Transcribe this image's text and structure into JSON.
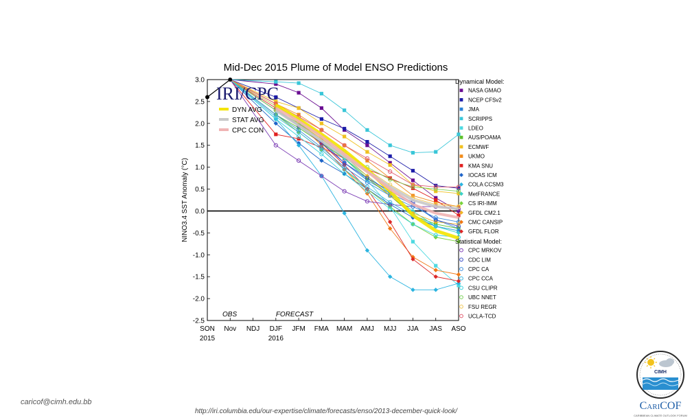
{
  "chart_data": {
    "type": "line",
    "title": "Mid-Dec 2015 Plume of Model ENSO Predictions",
    "watermark": "IRI/CPC",
    "ylabel": "NINO3.4 SST Anomaly (°C)",
    "xlabel": "",
    "ylim": [
      -2.5,
      3.0
    ],
    "yticks": [
      3.0,
      2.5,
      2.0,
      1.5,
      1.0,
      0.5,
      0.0,
      -0.5,
      -1.0,
      -1.5,
      -2.0,
      -2.5
    ],
    "yticklabels": [
      "3.0",
      "2.5",
      "2.0",
      "1.5",
      "1.0",
      "0.5",
      "0.0",
      "-0.5",
      "-1.0",
      "-1.5",
      "-2.0",
      "-2.5"
    ],
    "categories": [
      "SON",
      "Nov",
      "NDJ",
      "DJF",
      "JFM",
      "FMA",
      "MAM",
      "AMJ",
      "MJJ",
      "JJA",
      "JAS",
      "ASO"
    ],
    "year_labels": [
      {
        "index": 0,
        "text": "2015"
      },
      {
        "index": 3,
        "text": "2016"
      }
    ],
    "region_labels": {
      "obs": "OBS",
      "forecast": "FORECAST"
    },
    "observed": {
      "name": "OBS",
      "color": "#000000",
      "values": [
        2.6,
        3.0
      ]
    },
    "summary_legend": [
      {
        "name": "DYN AVG",
        "color": "#f4e400"
      },
      {
        "name": "STAT AVG",
        "color": "#c8c8c8"
      },
      {
        "name": "CPC CON",
        "color": "#f0b4b4"
      }
    ],
    "averages": [
      {
        "name": "DYN AVG",
        "color": "#f4e400",
        "values": [
          2.42,
          2.1,
          1.75,
          1.38,
          0.95,
          0.45,
          -0.1,
          -0.45,
          -0.62
        ]
      },
      {
        "name": "STAT AVG",
        "color": "#c8c8c8",
        "values": [
          2.3,
          1.95,
          1.6,
          1.25,
          0.9,
          0.55,
          0.25,
          0.1,
          0.05
        ]
      },
      {
        "name": "CPC CON",
        "color": "#f0b4b4",
        "values": [
          2.35,
          2.05,
          1.7,
          1.3,
          0.9,
          0.5,
          0.15,
          -0.05,
          -0.15
        ]
      }
    ],
    "dynamical_header": "Dynamical Model:",
    "statistical_header": "Statistical Model:",
    "dynamical": [
      {
        "name": "NASA GMAO",
        "color": "#6a0d91",
        "marker": "square",
        "values": [
          2.9,
          2.7,
          2.35,
          1.85,
          1.5,
          1.1,
          0.7,
          0.3,
          0.0
        ]
      },
      {
        "name": "NCEP CFSv2",
        "color": "#1c1ca8",
        "marker": "square",
        "values": [
          2.6,
          2.35,
          2.1,
          1.88,
          1.58,
          1.25,
          0.92,
          0.58,
          0.52
        ]
      },
      {
        "name": "JMA",
        "color": "#2a7fd4",
        "marker": "square",
        "values": [
          2.45,
          2.0,
          1.6,
          1.1,
          0.7,
          0.4,
          0.15,
          -0.2,
          -0.4
        ]
      },
      {
        "name": "SCRIPPS",
        "color": "#39c6d8",
        "marker": "square",
        "values": [
          2.95,
          2.92,
          2.68,
          2.3,
          1.85,
          1.5,
          1.33,
          1.35,
          1.75
        ]
      },
      {
        "name": "LDEO",
        "color": "#4fd9e0",
        "marker": "square",
        "values": [
          2.4,
          2.1,
          1.7,
          1.2,
          0.7,
          0.1,
          -0.7,
          -1.25,
          -1.7
        ]
      },
      {
        "name": "AUS/POAMA",
        "color": "#5cc02c",
        "marker": "square",
        "values": [
          2.2,
          1.9,
          1.55,
          1.2,
          0.75,
          0.35,
          -0.1,
          -0.3,
          -0.4
        ]
      },
      {
        "name": "ECMWF",
        "color": "#f0c020",
        "marker": "square",
        "values": [
          2.5,
          2.35,
          2.0,
          1.7,
          1.35,
          1.05,
          0.6,
          0.45,
          0.4
        ]
      },
      {
        "name": "UKMO",
        "color": "#f08c1c",
        "marker": "square",
        "values": [
          2.45,
          2.2,
          1.85,
          1.5,
          1.15,
          0.75,
          0.35,
          0.2,
          0.1
        ]
      },
      {
        "name": "KMA SNU",
        "color": "#e02020",
        "marker": "square",
        "values": [
          1.75,
          1.65,
          1.45,
          1.2,
          0.95,
          0.75,
          0.52,
          0.25,
          -0.1
        ]
      },
      {
        "name": "IOCAS ICM",
        "color": "#1e64c8",
        "marker": "diamond",
        "values": [
          2.0,
          1.55,
          1.15,
          0.85,
          0.5,
          0.15,
          -0.15,
          -0.35,
          -0.45
        ]
      },
      {
        "name": "COLA CCSM3",
        "color": "#2cb4e0",
        "marker": "diamond",
        "values": [
          2.1,
          1.5,
          0.8,
          -0.05,
          -0.9,
          -1.5,
          -1.8,
          -1.8,
          -1.65
        ]
      },
      {
        "name": "MetFRANCE",
        "color": "#3cd2c8",
        "marker": "diamond",
        "values": [
          2.4,
          2.05,
          1.6,
          1.2,
          0.8,
          0.4,
          0.0,
          -0.35,
          -0.5
        ]
      },
      {
        "name": "CS IRI-IMM",
        "color": "#78d23c",
        "marker": "diamond",
        "values": [
          2.2,
          1.8,
          1.4,
          0.95,
          0.5,
          0.1,
          -0.3,
          -0.6,
          -0.7
        ]
      },
      {
        "name": "GFDL CM2.1",
        "color": "#f0b428",
        "marker": "diamond",
        "values": [
          2.3,
          2.0,
          1.65,
          1.25,
          0.8,
          0.35,
          -0.05,
          -0.25,
          -0.3
        ]
      },
      {
        "name": "CMC CANSIP",
        "color": "#f07814",
        "marker": "diamond",
        "values": [
          2.45,
          2.0,
          1.5,
          0.95,
          0.4,
          -0.4,
          -1.05,
          -1.35,
          -1.45
        ]
      },
      {
        "name": "GFDL FLOR",
        "color": "#dc2828",
        "marker": "diamond",
        "values": [
          2.35,
          1.95,
          1.55,
          1.05,
          0.5,
          -0.25,
          -1.1,
          -1.5,
          -1.6
        ]
      }
    ],
    "statistical": [
      {
        "name": "CPC MRKOV",
        "color": "#7a3cb4",
        "marker": "circle",
        "values": [
          1.5,
          1.15,
          0.8,
          0.45,
          0.22,
          0.15,
          0.1,
          0.1,
          0.05
        ]
      },
      {
        "name": "CDC LIM",
        "color": "#3c50c8",
        "marker": "circle",
        "values": [
          2.3,
          1.95,
          1.55,
          1.1,
          0.75,
          0.45,
          0.2,
          -0.2,
          -0.35
        ]
      },
      {
        "name": "CPC CA",
        "color": "#3c8cdc",
        "marker": "circle",
        "values": [
          2.2,
          1.85,
          1.45,
          1.0,
          0.65,
          0.35,
          0.1,
          -0.15,
          -0.25
        ]
      },
      {
        "name": "CPC CCA",
        "color": "#3cb4dc",
        "marker": "circle",
        "values": [
          2.15,
          1.8,
          1.4,
          0.95,
          0.55,
          0.2,
          -0.1,
          -0.35,
          -0.45
        ]
      },
      {
        "name": "CSU CLIPR",
        "color": "#3cd2dc",
        "marker": "circle",
        "values": [
          2.1,
          1.7,
          1.3,
          0.85,
          0.45,
          0.05,
          -0.3,
          -0.55,
          -0.6
        ]
      },
      {
        "name": "UBC NNET",
        "color": "#7cd25a",
        "marker": "circle",
        "values": [
          2.3,
          2.0,
          1.7,
          1.35,
          1.0,
          0.72,
          0.55,
          0.5,
          0.45
        ]
      },
      {
        "name": "FSU REGR",
        "color": "#f0c85a",
        "marker": "circle",
        "values": [
          2.4,
          2.05,
          1.7,
          1.3,
          0.95,
          0.6,
          0.3,
          0.15,
          0.1
        ]
      },
      {
        "name": "UCLA-TCD",
        "color": "#e05a6e",
        "marker": "circle",
        "values": [
          2.45,
          2.15,
          1.85,
          1.5,
          1.2,
          0.9,
          0.6,
          0.55,
          0.55
        ]
      }
    ]
  },
  "footer": {
    "email": "caricof@cimh.edu.bb",
    "url": "http://iri.columbia.edu/our-expertise/climate/forecasts/enso/2013-december-quick-look/"
  },
  "logo": {
    "badge_text": "CIMH",
    "brand_prefix": "C",
    "brand_main": "ARI",
    "brand_suffix": "COF",
    "tagline": "CARIBBEAN CLIMATE OUTLOOK FORUM"
  }
}
